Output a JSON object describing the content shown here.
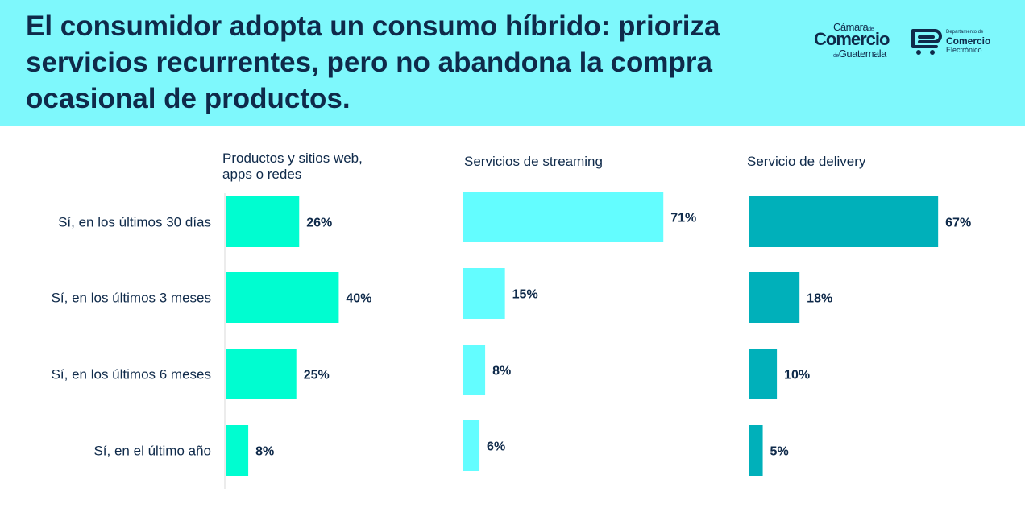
{
  "header": {
    "title": "El consumidor adopta un consumo híbrido: prioriza servicios recurrentes, pero no abandona la compra ocasional de productos."
  },
  "logos": {
    "camara": {
      "top": "Cámara",
      "de1": "de",
      "main": "Comercio",
      "de2": "de",
      "bottom": "Guatemala"
    },
    "departamento": {
      "small": "Departamento de",
      "main": "Comercio",
      "sub": "Electrónico"
    }
  },
  "chart_data": {
    "type": "bar",
    "orientation": "horizontal",
    "categories": [
      "Sí, en los últimos 30 días",
      "Sí, en los últimos 3 meses",
      "Sí, en los últimos 6 meses",
      "Sí, en el último año"
    ],
    "series": [
      {
        "name": "Productos y sitios web, apps o redes",
        "title_lines": [
          "Productos y sitios web,",
          "apps o redes"
        ],
        "values": [
          26,
          40,
          25,
          8
        ],
        "labels": [
          "26%",
          "40%",
          "25%",
          "8%"
        ],
        "color": "#00fdd0"
      },
      {
        "name": "Servicios de streaming",
        "title_lines": [
          "Servicios de streaming"
        ],
        "values": [
          71,
          15,
          8,
          6
        ],
        "labels": [
          "71%",
          "15%",
          "8%",
          "6%"
        ],
        "color": "#63fdff"
      },
      {
        "name": "Servicio de delivery",
        "title_lines": [
          "Servicio de delivery"
        ],
        "values": [
          67,
          18,
          10,
          5
        ],
        "labels": [
          "67%",
          "18%",
          "10%",
          "5%"
        ],
        "color": "#00b0ba"
      }
    ],
    "value_unit": "%",
    "xlim": [
      0,
      100
    ],
    "grid": false
  }
}
